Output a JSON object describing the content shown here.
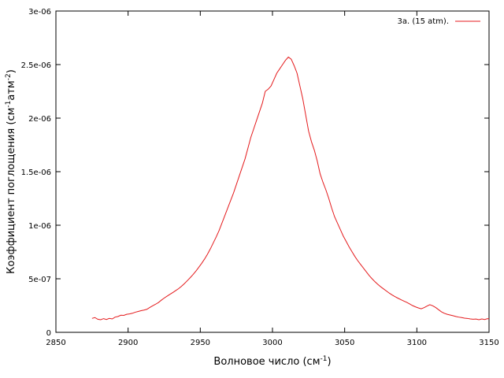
{
  "chart_data": {
    "type": "line",
    "xlabel": "Волновое число (см",
    "xlabel_sup": "-1",
    "xlabel_tail": ")",
    "ylabel": "Коэффициент поглощения (см",
    "ylabel_sup1": "-1",
    "ylabel_mid": "атм",
    "ylabel_sup2": "-2",
    "ylabel_tail": ")",
    "xlim": [
      2850,
      3150
    ],
    "ylim": [
      0,
      3e-06
    ],
    "x_ticks": [
      2850,
      2900,
      2950,
      3000,
      3050,
      3100,
      3150
    ],
    "x_tick_labels": [
      "2850",
      "2900",
      "2950",
      "3000",
      "3050",
      "3100",
      "3150"
    ],
    "y_ticks": [
      0,
      5e-07,
      1e-06,
      1.5e-06,
      2e-06,
      2.5e-06,
      3e-06
    ],
    "y_tick_labels": [
      "0",
      "5e-07",
      "1e-06",
      "1.5e-06",
      "2e-06",
      "2.5e-06",
      "3e-06"
    ],
    "grid": false,
    "legend_position": "top-right",
    "series": [
      {
        "name": "3a. (15 atm).",
        "color": "#e41a1c",
        "points": [
          [
            2875,
            1.3e-07
          ],
          [
            2877,
            1.38e-07
          ],
          [
            2879,
            1.22e-07
          ],
          [
            2881,
            1.18e-07
          ],
          [
            2883,
            1.28e-07
          ],
          [
            2885,
            1.2e-07
          ],
          [
            2887,
            1.3e-07
          ],
          [
            2889,
            1.25e-07
          ],
          [
            2891,
            1.42e-07
          ],
          [
            2893,
            1.48e-07
          ],
          [
            2895,
            1.6e-07
          ],
          [
            2897,
            1.58e-07
          ],
          [
            2899,
            1.68e-07
          ],
          [
            2901,
            1.72e-07
          ],
          [
            2903,
            1.78e-07
          ],
          [
            2905,
            1.88e-07
          ],
          [
            2907,
            1.95e-07
          ],
          [
            2909,
            2.02e-07
          ],
          [
            2911,
            2.08e-07
          ],
          [
            2913,
            2.15e-07
          ],
          [
            2915,
            2.32e-07
          ],
          [
            2917,
            2.48e-07
          ],
          [
            2919,
            2.62e-07
          ],
          [
            2921,
            2.78e-07
          ],
          [
            2923,
            3e-07
          ],
          [
            2925,
            3.2e-07
          ],
          [
            2927,
            3.38e-07
          ],
          [
            2929,
            3.55e-07
          ],
          [
            2931,
            3.72e-07
          ],
          [
            2933,
            3.9e-07
          ],
          [
            2935,
            4.08e-07
          ],
          [
            2937,
            4.3e-07
          ],
          [
            2939,
            4.55e-07
          ],
          [
            2941,
            4.82e-07
          ],
          [
            2943,
            5.1e-07
          ],
          [
            2945,
            5.4e-07
          ],
          [
            2947,
            5.72e-07
          ],
          [
            2949,
            6.08e-07
          ],
          [
            2951,
            6.45e-07
          ],
          [
            2953,
            6.85e-07
          ],
          [
            2955,
            7.3e-07
          ],
          [
            2957,
            7.8e-07
          ],
          [
            2959,
            8.35e-07
          ],
          [
            2961,
            8.9e-07
          ],
          [
            2963,
            9.5e-07
          ],
          [
            2965,
            1.02e-06
          ],
          [
            2967,
            1.09e-06
          ],
          [
            2969,
            1.16e-06
          ],
          [
            2971,
            1.23e-06
          ],
          [
            2973,
            1.3e-06
          ],
          [
            2975,
            1.38e-06
          ],
          [
            2977,
            1.46e-06
          ],
          [
            2979,
            1.54e-06
          ],
          [
            2981,
            1.62e-06
          ],
          [
            2983,
            1.72e-06
          ],
          [
            2985,
            1.82e-06
          ],
          [
            2987,
            1.9e-06
          ],
          [
            2989,
            1.98e-06
          ],
          [
            2991,
            2.06e-06
          ],
          [
            2993,
            2.14e-06
          ],
          [
            2995,
            2.25e-06
          ],
          [
            2997,
            2.27e-06
          ],
          [
            2999,
            2.3e-06
          ],
          [
            3001,
            2.36e-06
          ],
          [
            3003,
            2.42e-06
          ],
          [
            3005,
            2.46e-06
          ],
          [
            3007,
            2.5e-06
          ],
          [
            3009,
            2.54e-06
          ],
          [
            3011,
            2.57e-06
          ],
          [
            3013,
            2.55e-06
          ],
          [
            3015,
            2.49e-06
          ],
          [
            3017,
            2.42e-06
          ],
          [
            3019,
            2.3e-06
          ],
          [
            3021,
            2.18e-06
          ],
          [
            3023,
            2.03e-06
          ],
          [
            3025,
            1.88e-06
          ],
          [
            3027,
            1.78e-06
          ],
          [
            3029,
            1.7e-06
          ],
          [
            3031,
            1.6e-06
          ],
          [
            3033,
            1.48e-06
          ],
          [
            3035,
            1.4e-06
          ],
          [
            3037,
            1.33e-06
          ],
          [
            3039,
            1.25e-06
          ],
          [
            3041,
            1.16e-06
          ],
          [
            3043,
            1.08e-06
          ],
          [
            3045,
            1.02e-06
          ],
          [
            3047,
            9.6e-07
          ],
          [
            3049,
            9e-07
          ],
          [
            3051,
            8.5e-07
          ],
          [
            3053,
            8e-07
          ],
          [
            3055,
            7.55e-07
          ],
          [
            3057,
            7.1e-07
          ],
          [
            3059,
            6.7e-07
          ],
          [
            3061,
            6.35e-07
          ],
          [
            3063,
            6e-07
          ],
          [
            3065,
            5.65e-07
          ],
          [
            3067,
            5.3e-07
          ],
          [
            3069,
            5e-07
          ],
          [
            3071,
            4.72e-07
          ],
          [
            3073,
            4.48e-07
          ],
          [
            3075,
            4.25e-07
          ],
          [
            3077,
            4.05e-07
          ],
          [
            3079,
            3.85e-07
          ],
          [
            3081,
            3.65e-07
          ],
          [
            3083,
            3.48e-07
          ],
          [
            3085,
            3.32e-07
          ],
          [
            3087,
            3.18e-07
          ],
          [
            3089,
            3.05e-07
          ],
          [
            3091,
            2.92e-07
          ],
          [
            3093,
            2.8e-07
          ],
          [
            3095,
            2.65e-07
          ],
          [
            3097,
            2.5e-07
          ],
          [
            3099,
            2.38e-07
          ],
          [
            3101,
            2.28e-07
          ],
          [
            3103,
            2.2e-07
          ],
          [
            3105,
            2.3e-07
          ],
          [
            3107,
            2.45e-07
          ],
          [
            3109,
            2.58e-07
          ],
          [
            3111,
            2.48e-07
          ],
          [
            3113,
            2.32e-07
          ],
          [
            3115,
            2.12e-07
          ],
          [
            3117,
            1.92e-07
          ],
          [
            3119,
            1.78e-07
          ],
          [
            3121,
            1.68e-07
          ],
          [
            3123,
            1.62e-07
          ],
          [
            3125,
            1.55e-07
          ],
          [
            3127,
            1.48e-07
          ],
          [
            3129,
            1.42e-07
          ],
          [
            3131,
            1.38e-07
          ],
          [
            3133,
            1.32e-07
          ],
          [
            3135,
            1.3e-07
          ],
          [
            3137,
            1.25e-07
          ],
          [
            3139,
            1.22e-07
          ],
          [
            3141,
            1.24e-07
          ],
          [
            3143,
            1.18e-07
          ],
          [
            3145,
            1.25e-07
          ],
          [
            3147,
            1.2e-07
          ],
          [
            3149,
            1.28e-07
          ],
          [
            3150,
            1.25e-07
          ]
        ]
      }
    ]
  }
}
